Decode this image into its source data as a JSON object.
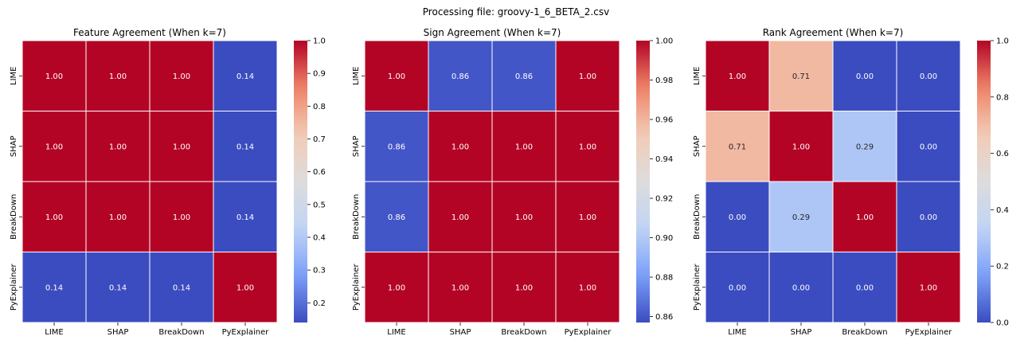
{
  "figure": {
    "suptitle": "Processing file: groovy-1_6_BETA_2.csv"
  },
  "colormap": {
    "name": "coolwarm",
    "stops": [
      "#3b4cc0",
      "#7b9ff9",
      "#c0d4f5",
      "#dddcdc",
      "#f2cbb7",
      "#ee8468",
      "#b40426"
    ]
  },
  "chart_data": [
    {
      "type": "heatmap",
      "title": "Feature Agreement (When k=7)",
      "xlabels": [
        "LIME",
        "SHAP",
        "BreakDown",
        "PyExplainer"
      ],
      "ylabels": [
        "LIME",
        "SHAP",
        "BreakDown",
        "PyExplainer"
      ],
      "values": [
        [
          1.0,
          1.0,
          1.0,
          0.14
        ],
        [
          1.0,
          1.0,
          1.0,
          0.14
        ],
        [
          1.0,
          1.0,
          1.0,
          0.14
        ],
        [
          0.14,
          0.14,
          0.14,
          1.0
        ]
      ],
      "cell_labels": [
        [
          "1.00",
          "1.00",
          "1.00",
          "0.14"
        ],
        [
          "1.00",
          "1.00",
          "1.00",
          "0.14"
        ],
        [
          "1.00",
          "1.00",
          "1.00",
          "0.14"
        ],
        [
          "0.14",
          "0.14",
          "0.14",
          "1.00"
        ]
      ],
      "vmin": 0.14,
      "vmax": 1.0,
      "colorbar_ticks": [
        "0.2",
        "0.3",
        "0.4",
        "0.5",
        "0.6",
        "0.7",
        "0.8",
        "0.9",
        "1.0"
      ]
    },
    {
      "type": "heatmap",
      "title": "Sign Agreement (When k=7)",
      "xlabels": [
        "LIME",
        "SHAP",
        "BreakDown",
        "PyExplainer"
      ],
      "ylabels": [
        "LIME",
        "SHAP",
        "BreakDown",
        "PyExplainer"
      ],
      "values": [
        [
          1.0,
          0.86,
          0.86,
          1.0
        ],
        [
          0.86,
          1.0,
          1.0,
          1.0
        ],
        [
          0.86,
          1.0,
          1.0,
          1.0
        ],
        [
          1.0,
          1.0,
          1.0,
          1.0
        ]
      ],
      "cell_labels": [
        [
          "1.00",
          "0.86",
          "0.86",
          "1.00"
        ],
        [
          "0.86",
          "1.00",
          "1.00",
          "1.00"
        ],
        [
          "0.86",
          "1.00",
          "1.00",
          "1.00"
        ],
        [
          "1.00",
          "1.00",
          "1.00",
          "1.00"
        ]
      ],
      "vmin": 0.857,
      "vmax": 1.0,
      "colorbar_ticks": [
        "0.86",
        "0.88",
        "0.90",
        "0.92",
        "0.94",
        "0.96",
        "0.98",
        "1.00"
      ]
    },
    {
      "type": "heatmap",
      "title": "Rank Agreement (When k=7)",
      "xlabels": [
        "LIME",
        "SHAP",
        "BreakDown",
        "PyExplainer"
      ],
      "ylabels": [
        "LIME",
        "SHAP",
        "BreakDown",
        "PyExplainer"
      ],
      "values": [
        [
          1.0,
          0.71,
          0.0,
          0.0
        ],
        [
          0.71,
          1.0,
          0.29,
          0.0
        ],
        [
          0.0,
          0.29,
          1.0,
          0.0
        ],
        [
          0.0,
          0.0,
          0.0,
          1.0
        ]
      ],
      "cell_labels": [
        [
          "1.00",
          "0.71",
          "0.00",
          "0.00"
        ],
        [
          "0.71",
          "1.00",
          "0.29",
          "0.00"
        ],
        [
          "0.00",
          "0.29",
          "1.00",
          "0.00"
        ],
        [
          "0.00",
          "0.00",
          "0.00",
          "1.00"
        ]
      ],
      "vmin": 0.0,
      "vmax": 1.0,
      "colorbar_ticks": [
        "0.0",
        "0.2",
        "0.4",
        "0.6",
        "0.8",
        "1.0"
      ]
    }
  ]
}
